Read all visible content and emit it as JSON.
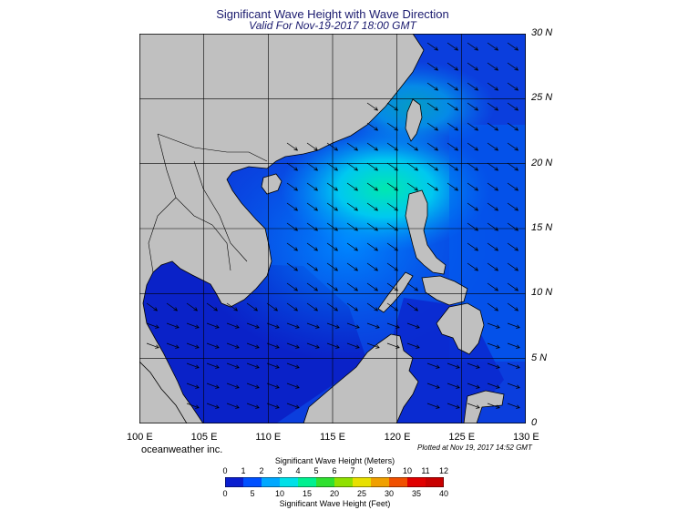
{
  "header": {
    "title": "Significant Wave Height with Wave Direction",
    "subtitle": "Valid For Nov-19-2017 18:00 GMT"
  },
  "map": {
    "lat_range": [
      0,
      30
    ],
    "lon_range": [
      100,
      130
    ],
    "lat_labels": [
      "30 N",
      "25 N",
      "20 N",
      "15 N",
      "10 N",
      "5 N",
      "0"
    ],
    "lon_labels": [
      "100 E",
      "105 E",
      "110 E",
      "115 E",
      "120 E",
      "125 E",
      "130 E"
    ],
    "land_color": "#c0c0c0",
    "grid": true
  },
  "footer": {
    "brand": "oceanweather inc.",
    "plotted": "Plotted at Nov 19, 2017 14:52 GMT"
  },
  "colorbar": {
    "title_meters": "Significant Wave Height (Meters)",
    "title_feet": "Significant Wave Height (Feet)",
    "ticks_meters": [
      "0",
      "1",
      "2",
      "3",
      "4",
      "5",
      "6",
      "7",
      "8",
      "9",
      "10",
      "11",
      "12"
    ],
    "ticks_feet": [
      "0",
      "5",
      "10",
      "15",
      "20",
      "25",
      "30",
      "35",
      "40"
    ],
    "colors": [
      "#0a1ecf",
      "#0050ff",
      "#00a8ff",
      "#00e0e8",
      "#00f090",
      "#30e030",
      "#90e000",
      "#e8e000",
      "#f0a000",
      "#f05000",
      "#e00000",
      "#c80000"
    ]
  }
}
